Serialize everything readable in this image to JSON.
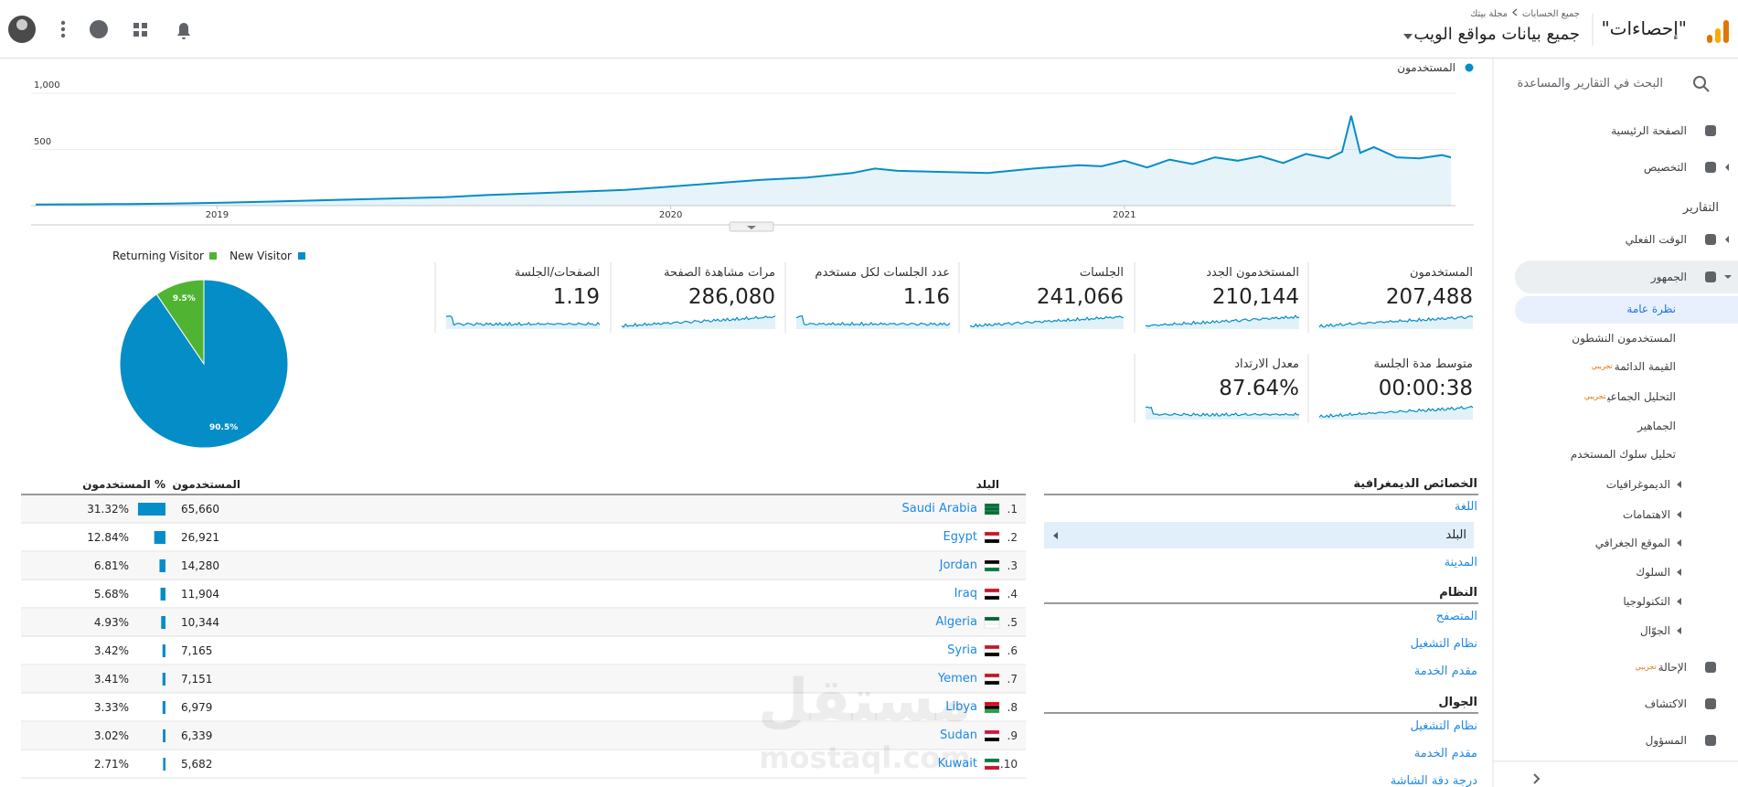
{
  "header": {
    "title": "\"إحصاءات\"",
    "breadcrumb": [
      "جميع الحسابات",
      "مجلة بيتك"
    ],
    "property": "جميع بيانات مواقع الويب"
  },
  "sidebar": {
    "search": "البحث في التقارير والمساعدة",
    "items": [
      {
        "label": "الصفحة الرئيسية"
      },
      {
        "label": "التخصيص"
      },
      {
        "label": "التقارير"
      },
      {
        "label": "الوقت الفعلي"
      },
      {
        "label": "الجمهور"
      },
      {
        "label": "نظرة عامة"
      },
      {
        "label": "المستخدمون النشطون"
      },
      {
        "label": "القيمة الدائمة",
        "badge": "تجريبي"
      },
      {
        "label": "التحليل الجماعي",
        "badge": "تجريبي"
      },
      {
        "label": "الجماهير"
      },
      {
        "label": "تحليل سلوك المستخدم"
      },
      {
        "label": "الديموغرافيات"
      },
      {
        "label": "الاهتمامات"
      },
      {
        "label": "الموقع الجغرافي"
      },
      {
        "label": "السلوك"
      },
      {
        "label": "التكنولوجيا"
      },
      {
        "label": "الجوّال"
      },
      {
        "label": "الإحالة",
        "badge": "تجريبي"
      },
      {
        "label": "الاكتشاف"
      },
      {
        "label": "المسؤول"
      }
    ]
  },
  "chart_data": [
    {
      "type": "line",
      "xlim": [
        2018.59,
        2021.73
      ],
      "xticks": [
        2019,
        2020,
        2021
      ],
      "ylim": [
        0,
        1000
      ],
      "yticks": [
        500,
        {
          "value": 1000,
          "label": "1,000"
        }
      ],
      "grid": true,
      "x": [
        2018.6,
        2018.7,
        2018.8,
        2018.9,
        2019.0,
        2019.1,
        2019.2,
        2019.3,
        2019.4,
        2019.5,
        2019.6,
        2019.7,
        2019.8,
        2019.9,
        2020.0,
        2020.1,
        2020.2,
        2020.3,
        2020.4,
        2020.45,
        2020.5,
        2020.6,
        2020.7,
        2020.8,
        2020.9,
        2020.95,
        2021.0,
        2021.05,
        2021.1,
        2021.15,
        2021.2,
        2021.25,
        2021.3,
        2021.35,
        2021.4,
        2021.45,
        2021.48,
        2021.5,
        2021.52,
        2021.55,
        2021.6,
        2021.65,
        2021.7,
        2021.72
      ],
      "series": [
        {
          "name": "المستخدمون",
          "color": "#058dc7",
          "values": [
            10,
            12,
            15,
            18,
            25,
            35,
            45,
            55,
            65,
            75,
            95,
            110,
            125,
            140,
            170,
            200,
            230,
            250,
            290,
            330,
            310,
            300,
            290,
            330,
            360,
            350,
            400,
            340,
            410,
            370,
            430,
            400,
            440,
            380,
            460,
            420,
            480,
            800,
            470,
            520,
            430,
            420,
            450,
            430
          ]
        }
      ]
    },
    {
      "type": "pie",
      "categories": [
        "New Visitor",
        "Returning Visitor"
      ],
      "values": [
        90.5,
        9.5
      ],
      "value_labels": [
        "90.5%",
        "9.5%"
      ],
      "colors": [
        "#058dc7",
        "#50b432"
      ]
    }
  ],
  "metrics": [
    {
      "label": "المستخدمون",
      "value": "207,488"
    },
    {
      "label": "المستخدمون الجدد",
      "value": "210,144"
    },
    {
      "label": "الجلسات",
      "value": "241,066"
    },
    {
      "label": "عدد الجلسات لكل مستخدم",
      "value": "1.16"
    },
    {
      "label": "مرات مشاهدة الصفحة",
      "value": "286,080"
    },
    {
      "label": "الصفحات/الجلسة",
      "value": "1.19"
    },
    {
      "label": "متوسط مدة الجلسة",
      "value": "00:00:38"
    },
    {
      "label": "معدل الارتداد",
      "value": "87.64%"
    }
  ],
  "dimensions": [
    {
      "title": "الخصائص الديمغرافية",
      "items": [
        "اللغة",
        "البلد",
        "المدينة"
      ]
    },
    {
      "title": "النظام",
      "items": [
        "المتصفح",
        "نظام التشغيل",
        "مقدم الخدمة"
      ]
    },
    {
      "title": "الجوال",
      "items": [
        "نظام التشغيل",
        "مقدم الخدمة",
        "درجة دقة الشاشة"
      ]
    }
  ],
  "table": {
    "columns": [
      "البلد",
      "المستخدمون",
      "% المستخدمون"
    ],
    "rows": [
      {
        "rank": "1.",
        "country": "Saudi Arabia",
        "users": "65,660",
        "share": 31.32,
        "share_label": "31.32%"
      },
      {
        "rank": "2.",
        "country": "Egypt",
        "users": "26,921",
        "share": 12.84,
        "share_label": "12.84%"
      },
      {
        "rank": "3.",
        "country": "Jordan",
        "users": "14,280",
        "share": 6.81,
        "share_label": "6.81%"
      },
      {
        "rank": "4.",
        "country": "Iraq",
        "users": "11,904",
        "share": 5.68,
        "share_label": "5.68%"
      },
      {
        "rank": "5.",
        "country": "Algeria",
        "users": "10,344",
        "share": 4.93,
        "share_label": "4.93%"
      },
      {
        "rank": "6.",
        "country": "Syria",
        "users": "7,165",
        "share": 3.42,
        "share_label": "3.42%"
      },
      {
        "rank": "7.",
        "country": "Yemen",
        "users": "7,151",
        "share": 3.41,
        "share_label": "3.41%"
      },
      {
        "rank": "8.",
        "country": "Libya",
        "users": "6,979",
        "share": 3.33,
        "share_label": "3.33%"
      },
      {
        "rank": "9.",
        "country": "Sudan",
        "users": "6,339",
        "share": 3.02,
        "share_label": "3.02%"
      },
      {
        "rank": "10.",
        "country": "Kuwait",
        "users": "5,682",
        "share": 2.71,
        "share_label": "2.71%"
      }
    ]
  },
  "watermark": {
    "ar": "مستقل",
    "en": "mostaql.com"
  }
}
